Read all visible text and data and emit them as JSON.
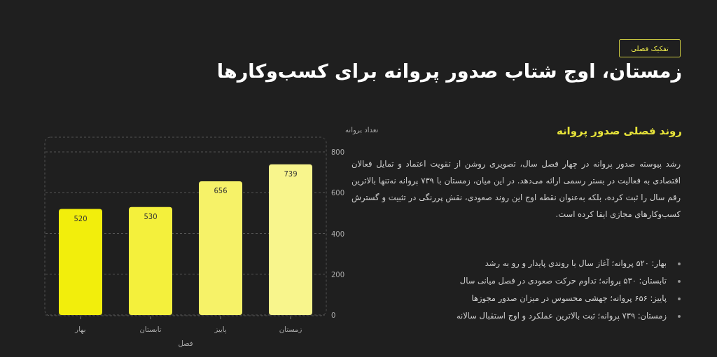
{
  "chart_data": {
    "type": "bar",
    "title": "زمستان، اوج شتاب صدور پروانه برای کسب‌وکارها",
    "subtitle": "روند فصلی صدور پروانه",
    "xlabel": "فصل",
    "ylabel": "تعداد پروانه",
    "categories": [
      "بهار",
      "تابستان",
      "پاییز",
      "زمستان"
    ],
    "values": [
      520,
      530,
      656,
      739
    ],
    "colors": [
      "#f2ee0c",
      "#f4f03c",
      "#f6f268",
      "#f8f58c"
    ],
    "ylim": [
      0,
      800
    ],
    "yticks": [
      0,
      200,
      400,
      600,
      800
    ],
    "grid": "y",
    "data_labels": true,
    "annotations": [
      "تفکیک فصلی",
      "رشد پیوسته صدور پروانه در چهار فصل سال، تصویری روشن از تقویت اعتماد و تمایل فعالان اقتصادی به فعالیت در بستر رسمی ارائه می‌دهد. در این میان، زمستان با ۷۳۹ پروانه نه‌تنها بالاترین رقم سال را ثبت کرده، بلکه به‌عنوان نقطه اوج این روند صعودی، نقش پررنگی در تثبیت و گسترش کسب‌وکارهای مجازی ایفا کرده است.",
      "بهار: ۵۲۰ پروانه؛ آغاز سال با روندی پایدار و رو به رشد",
      "تابستان: ۵۳۰ پروانه؛ تداوم حرکت صعودی در فصل میانی سال",
      "پاییز: ۶۵۶ پروانه؛ جهشی محسوس در میزان صدور مجوزها",
      "زمستان: ۷۳۹ پروانه؛ ثبت بالاترین عملکرد و اوج استقبال سالانه"
    ]
  }
}
